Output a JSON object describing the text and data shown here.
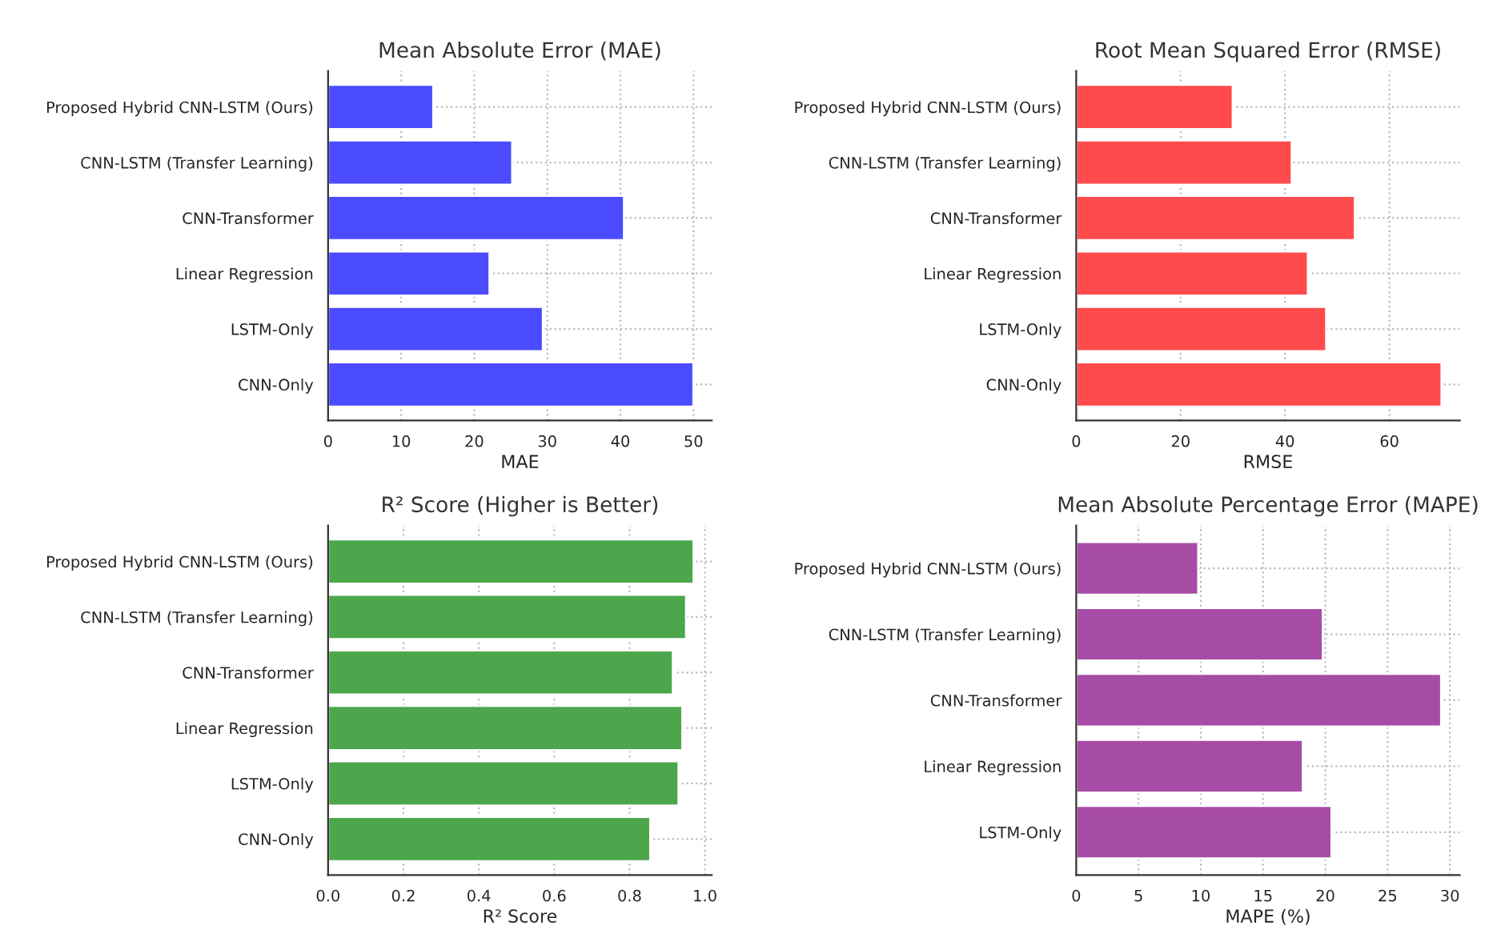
{
  "chart_data": [
    {
      "type": "bar",
      "orientation": "horizontal",
      "title": "Mean Absolute Error (MAE)",
      "xlabel": "MAE",
      "categories": [
        "Proposed Hybrid CNN-LSTM (Ours)",
        "CNN-LSTM (Transfer Learning)",
        "CNN-Transformer",
        "Linear Regression",
        "LSTM-Only",
        "CNN-Only"
      ],
      "values": [
        14.4,
        25.2,
        40.5,
        22.1,
        29.4,
        50
      ],
      "color": "#4b4bff",
      "xlim": [
        0,
        52.5
      ],
      "xticks": [
        0,
        10,
        20,
        30,
        40,
        50
      ],
      "grid": true
    },
    {
      "type": "bar",
      "orientation": "horizontal",
      "title": "Root Mean Squared Error (RMSE)",
      "xlabel": "RMSE",
      "categories": [
        "Proposed Hybrid CNN-LSTM (Ours)",
        "CNN-LSTM (Transfer Learning)",
        "CNN-Transformer",
        "Linear Regression",
        "LSTM-Only",
        "CNN-Only"
      ],
      "values": [
        30,
        41.3,
        53.4,
        44.4,
        47.9,
        70
      ],
      "color": "#ff4b4b",
      "xlim": [
        0,
        73.5
      ],
      "xticks": [
        0,
        20,
        40,
        60
      ],
      "grid": true
    },
    {
      "type": "bar",
      "orientation": "horizontal",
      "title": "R² Score (Higher is Better)",
      "xlabel": "R² Score",
      "categories": [
        "Proposed Hybrid CNN-LSTM (Ours)",
        "CNN-LSTM (Transfer Learning)",
        "CNN-Transformer",
        "Linear Regression",
        "LSTM-Only",
        "CNN-Only"
      ],
      "values": [
        0.97,
        0.95,
        0.915,
        0.94,
        0.93,
        0.855
      ],
      "color": "#4ca64c",
      "xlim": [
        0,
        1.018
      ],
      "xticks": [
        {
          "value": 0,
          "label": "0.0"
        },
        0.2,
        0.4,
        0.6,
        0.8,
        {
          "value": 1,
          "label": "1.0"
        }
      ],
      "grid": true
    },
    {
      "type": "bar",
      "orientation": "horizontal",
      "title": "Mean Absolute Percentage Error (MAPE)",
      "xlabel": "MAPE (%)",
      "categories": [
        "Proposed Hybrid CNN-LSTM (Ours)",
        "CNN-LSTM (Transfer Learning)",
        "CNN-Transformer",
        "Linear Regression",
        "LSTM-Only"
      ],
      "values": [
        9.8,
        19.8,
        29.3,
        18.2,
        20.5
      ],
      "color": "#a64ca6",
      "xlim": [
        0,
        30.8
      ],
      "xticks": [
        0,
        5,
        10,
        15,
        20,
        25,
        30
      ],
      "grid": true
    }
  ]
}
